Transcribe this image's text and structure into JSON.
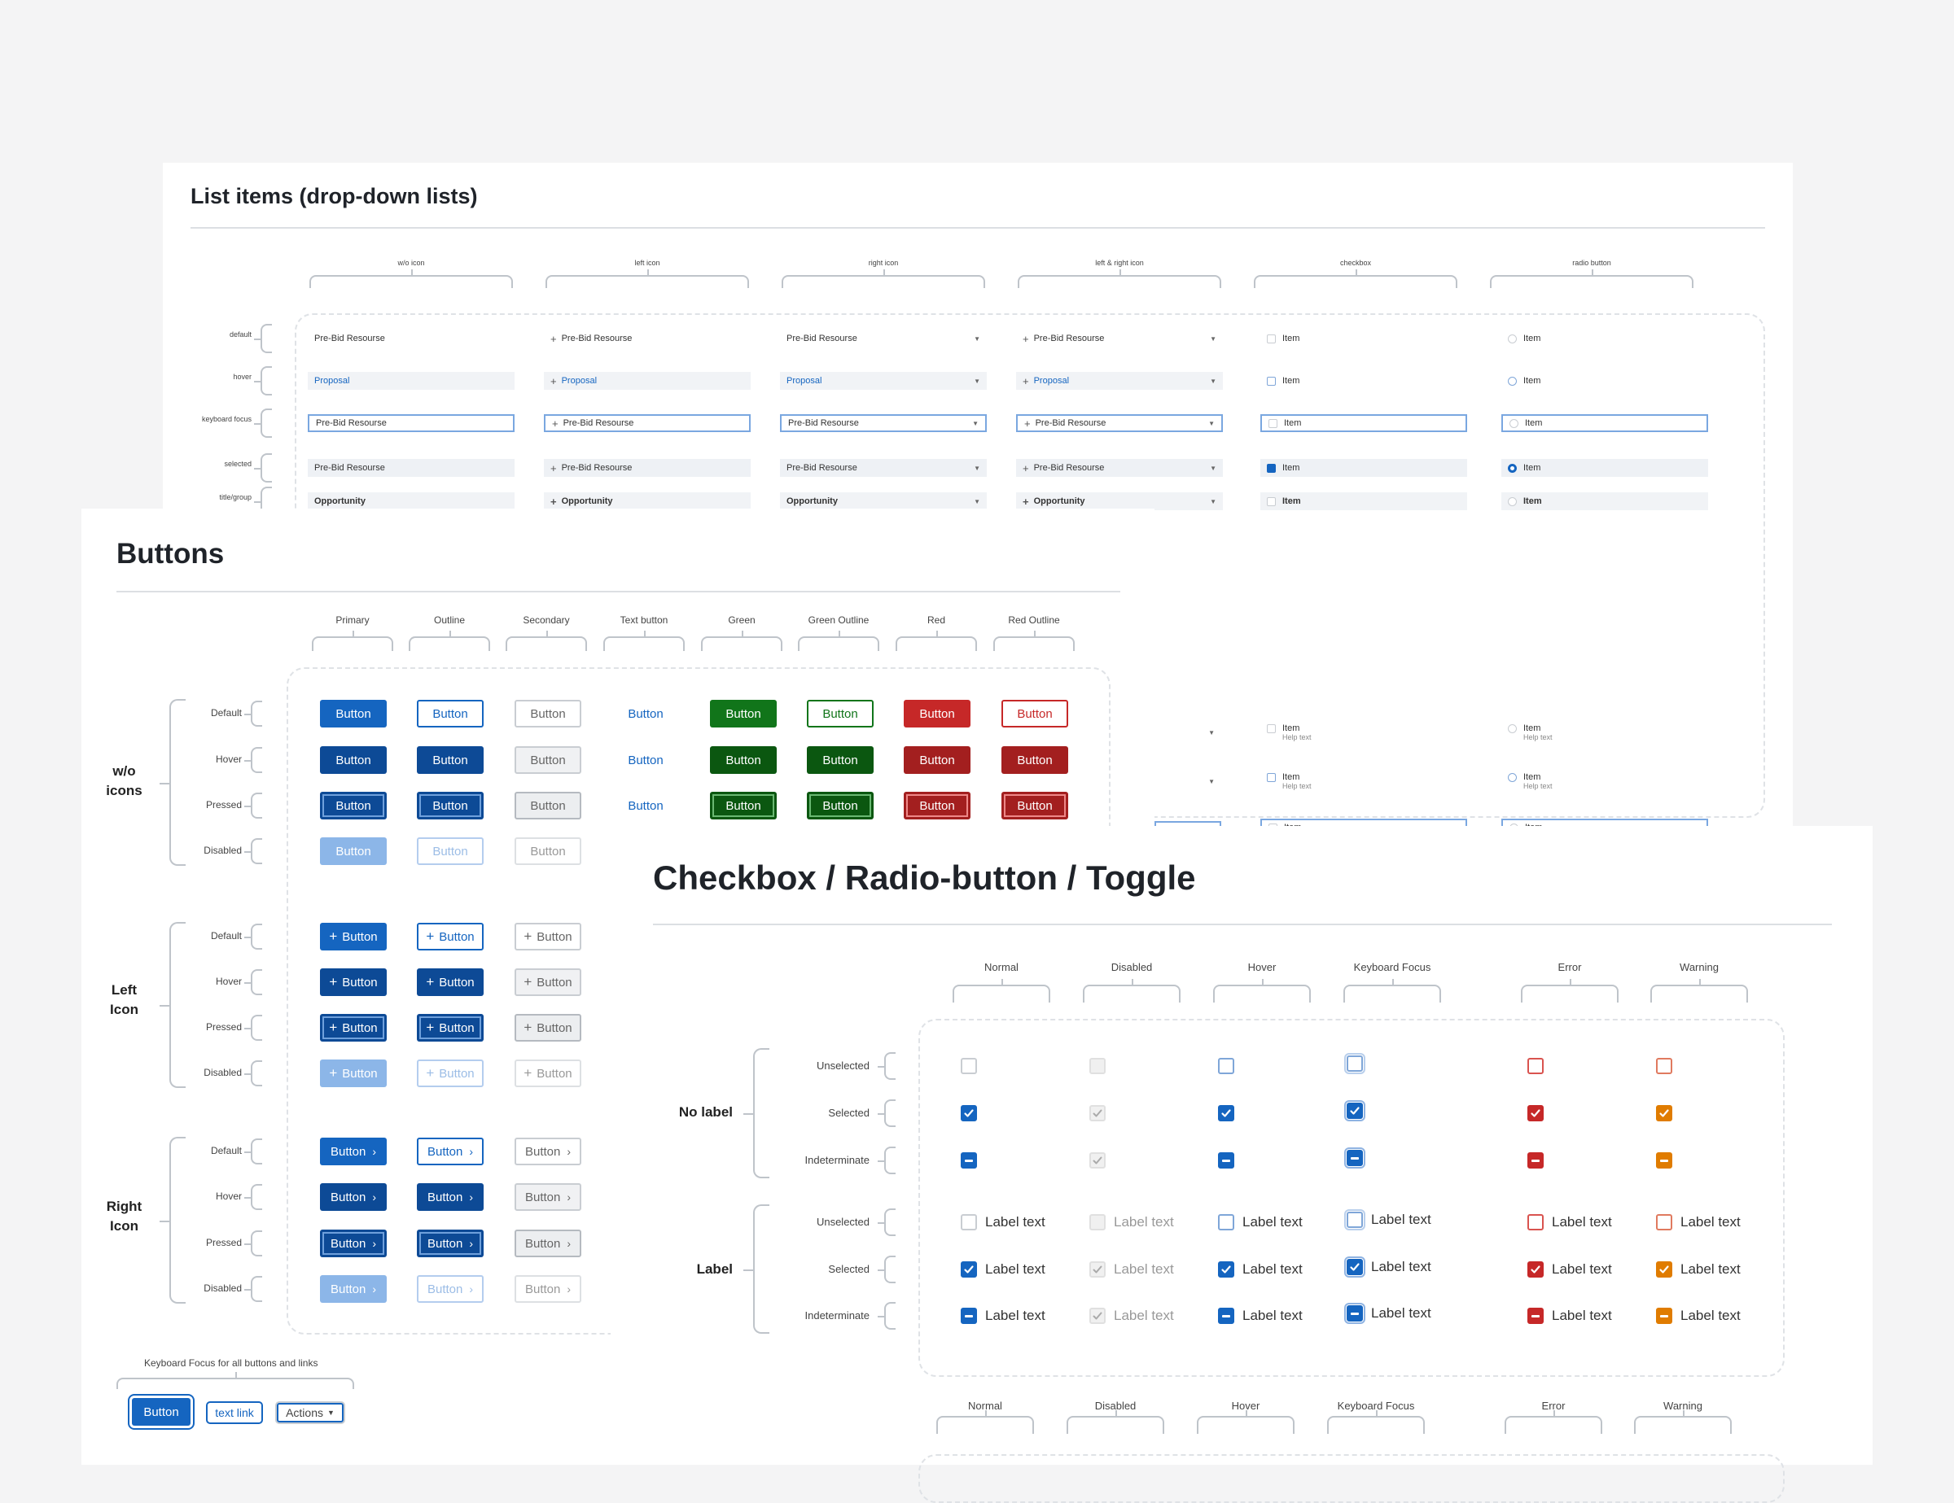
{
  "list": {
    "title": "List items (drop-down lists)",
    "columns": [
      "w/o icon",
      "left icon",
      "right icon",
      "left & right icon",
      "checkbox",
      "radio button"
    ],
    "rows": [
      "default",
      "hover",
      "keyboard focus",
      "selected",
      "title/group"
    ],
    "item_default": "Pre-Bid Resourse",
    "item_hover": "Proposal",
    "item_title": "Opportunity",
    "check_item": "Item",
    "help_text": "Help text"
  },
  "buttons": {
    "title": "Buttons",
    "columns": [
      "Primary",
      "Outline",
      "Secondary",
      "Text button",
      "Green",
      "Green Outline",
      "Red",
      "Red Outline"
    ],
    "states": [
      "Default",
      "Hover",
      "Pressed",
      "Disabled"
    ],
    "groups": [
      "w/o\nicons",
      "Left\nIcon",
      "Right\nIcon"
    ],
    "label": "Button",
    "focus_caption": "Keyboard Focus for all buttons and links",
    "focus_button": "Button",
    "focus_link": "text link",
    "focus_actions": "Actions"
  },
  "checkbox": {
    "title": "Checkbox / Radio-button / Toggle",
    "columns": [
      "Normal",
      "Disabled",
      "Hover",
      "Keyboard Focus",
      "Error",
      "Warning"
    ],
    "groups": [
      "No label",
      "Label"
    ],
    "states": [
      "Unselected",
      "Selected",
      "Indeterminate"
    ],
    "label_text": "Label text"
  },
  "colors": {
    "primary": "#1565c0",
    "green": "#11751a",
    "red": "#c62828",
    "warning": "#e07c00"
  }
}
